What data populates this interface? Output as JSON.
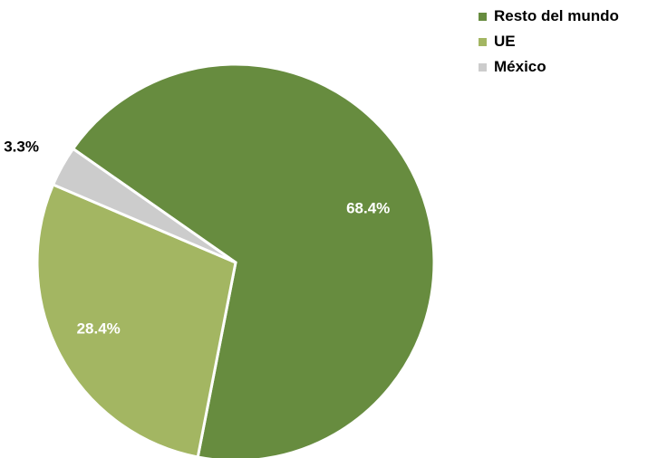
{
  "chart_data": {
    "type": "pie",
    "title": "",
    "slices": [
      {
        "name": "Resto del mundo",
        "value": 68.4,
        "label": "68.4%",
        "color": "#678c3f",
        "label_color": "#ffffff"
      },
      {
        "name": "UE",
        "value": 28.4,
        "label": "28.4%",
        "color": "#a3b662",
        "label_color": "#ffffff"
      },
      {
        "name": "México",
        "value": 3.3,
        "label": "3.3%",
        "color": "#cccccc",
        "label_color": "#000000"
      }
    ],
    "legend_position": "top-right",
    "start_at": "clockwise from upper-left, Resto del mundo first"
  }
}
